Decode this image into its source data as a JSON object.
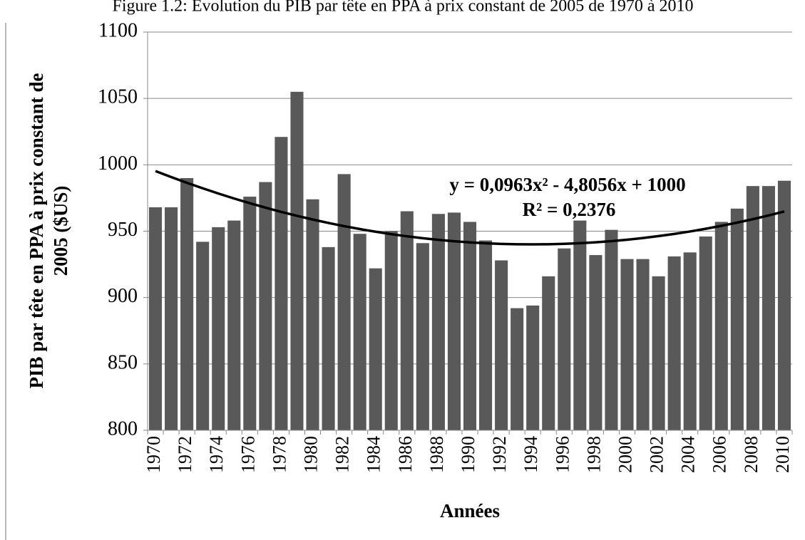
{
  "chart_data": {
    "type": "bar",
    "title": "Figure 1.2: Évolution du PIB par tête en PPA à prix constant de 2005 de 1970 à 2010",
    "y_label": [
      "PIB par tête en PPA à prix constant de",
      "2005 ($US)"
    ],
    "x_label": "Années",
    "annotations": [
      "y = 0,0963x² - 4,8056x + 1000",
      "R² = 0,2376"
    ],
    "categories": [
      "1970",
      null,
      "1972",
      null,
      "1974",
      null,
      "1976",
      null,
      "1978",
      null,
      "1980",
      null,
      "1982",
      null,
      "1984",
      null,
      "1986",
      null,
      "1988",
      null,
      "1990",
      null,
      "1992",
      null,
      "1994",
      null,
      "1996",
      null,
      "1998",
      null,
      "2000",
      null,
      "2002",
      null,
      "2004",
      null,
      "2006",
      null,
      "2008",
      null,
      "2010"
    ],
    "values": [
      968,
      968,
      990,
      942,
      953,
      958,
      976,
      987,
      1021,
      1055,
      974,
      938,
      993,
      948,
      922,
      950,
      965,
      941,
      963,
      964,
      957,
      943,
      928,
      892,
      894,
      916,
      937,
      958,
      932,
      951,
      929,
      929,
      916,
      931,
      934,
      946,
      957,
      967,
      984,
      984,
      988
    ],
    "color": "#595959",
    "trend": {
      "color": "#000000",
      "values": [
        995.29,
        990.77,
        986.45,
        982.32,
        978.38,
        974.63,
        971.08,
        967.72,
        964.55,
        961.57,
        958.79,
        956.2,
        953.8,
        951.6,
        949.58,
        947.76,
        946.14,
        944.7,
        943.46,
        942.41,
        941.55,
        940.89,
        940.41,
        940.13,
        940.05,
        940.15,
        940.45,
        940.94,
        941.63,
        942.5,
        943.57,
        944.83,
        946.29,
        947.93,
        949.77,
        951.8,
        954.03,
        956.44,
        959.05,
        961.86,
        964.85
      ]
    },
    "ylim": [
      800,
      1100
    ],
    "yticks": [
      800,
      850,
      900,
      950,
      1000,
      1050,
      1100
    ],
    "grid": true
  }
}
